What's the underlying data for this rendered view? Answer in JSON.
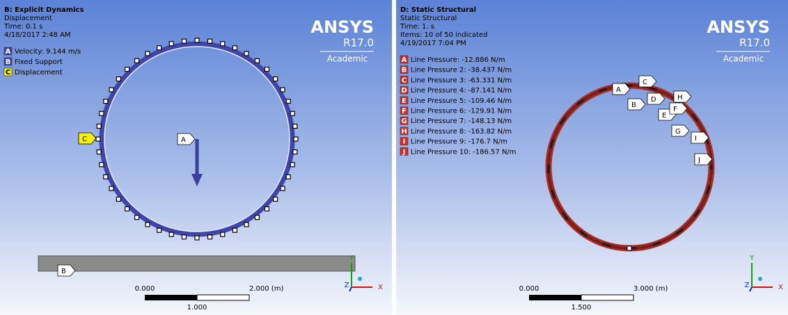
{
  "panels": [
    {
      "header": {
        "title": "B: Explicit Dynamics",
        "lines": [
          "Displacement",
          "Time: 0.1 s",
          "4/18/2017 2:48 AM"
        ]
      },
      "legend": [
        {
          "key": "A",
          "label": "Velocity: 9.144 m/s"
        },
        {
          "key": "B",
          "label": "Fixed Support"
        },
        {
          "key": "C",
          "label": "Displacement"
        }
      ],
      "logo": {
        "brand": "ANSYS",
        "version": "R17.0",
        "edition": "Academic"
      },
      "callouts": [
        "A",
        "B",
        "C"
      ],
      "scale": {
        "start": "0.000",
        "end": "2.000 (m)",
        "middle": "1.000"
      },
      "axes": {
        "x": "X",
        "y": "Y",
        "z": "Z"
      }
    },
    {
      "header": {
        "title": "D: Static Structural",
        "lines": [
          "Static Structural",
          "Time: 1. s",
          "Items: 10 of 50 indicated",
          "4/19/2017 7:04 PM"
        ]
      },
      "legend": [
        {
          "key": "A",
          "label": "Line Pressure: -12.886 N/m"
        },
        {
          "key": "B",
          "label": "Line Pressure 2: -38.437 N/m"
        },
        {
          "key": "C",
          "label": "Line Pressure 3: -63.331 N/m"
        },
        {
          "key": "D",
          "label": "Line Pressure 4: -87.141 N/m"
        },
        {
          "key": "E",
          "label": "Line Pressure 5: -109.46 N/m"
        },
        {
          "key": "F",
          "label": "Line Pressure 6: -129.91 N/m"
        },
        {
          "key": "G",
          "label": "Line Pressure 7: -148.13 N/m"
        },
        {
          "key": "H",
          "label": "Line Pressure 8: -163.82 N/m"
        },
        {
          "key": "I",
          "label": "Line Pressure 9: -176.7 N/m"
        },
        {
          "key": "J",
          "label": "Line Pressure 10: -186.57 N/m"
        }
      ],
      "logo": {
        "brand": "ANSYS",
        "version": "R17.0",
        "edition": "Academic"
      },
      "callouts": [
        "A",
        "B",
        "C",
        "D",
        "E",
        "F",
        "G",
        "H",
        "I",
        "J"
      ],
      "scale": {
        "start": "0.000",
        "end": "3.000 (m)",
        "middle": "1.500"
      },
      "axes": {
        "x": "X",
        "y": "Y",
        "z": "Z"
      }
    }
  ]
}
